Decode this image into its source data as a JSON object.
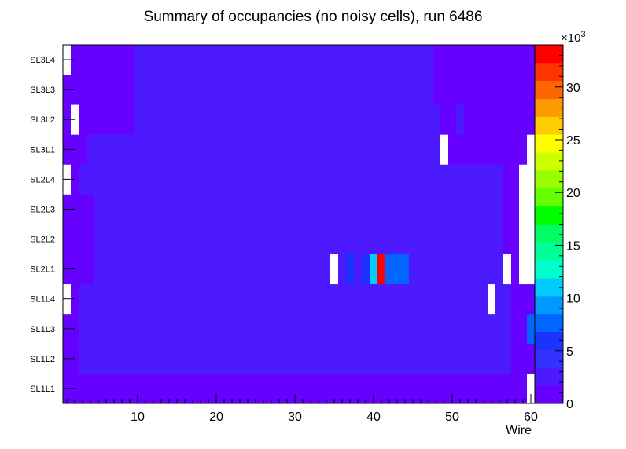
{
  "chart_data": {
    "type": "heatmap",
    "title": "Summary of occupancies (no noisy cells), run 6486",
    "xlabel": "Wire",
    "ylabel": "",
    "xlim": [
      0.5,
      60.5
    ],
    "x_ticks": [
      "10",
      "20",
      "30",
      "40",
      "50",
      "60"
    ],
    "x_tick_values": [
      10,
      20,
      30,
      40,
      50,
      60
    ],
    "rows": [
      "SL1L1",
      "SL1L2",
      "SL1L3",
      "SL1L4",
      "SL2L1",
      "SL2L2",
      "SL2L3",
      "SL2L4",
      "SL3L1",
      "SL3L2",
      "SL3L3",
      "SL3L4"
    ],
    "color_scale": {
      "min": 0,
      "max": 34000,
      "multiplier_label": "×10",
      "multiplier_exponent": "3",
      "tick_labels": [
        "0",
        "5",
        "10",
        "15",
        "20",
        "25",
        "30"
      ],
      "tick_values": [
        0,
        5000,
        10000,
        15000,
        20000,
        25000,
        30000
      ],
      "palette": [
        "#6600ff",
        "#4d1aff",
        "#3333ff",
        "#1a33ff",
        "#0066ff",
        "#0099ff",
        "#00ccff",
        "#00ffcc",
        "#00ff99",
        "#00ff66",
        "#00ff00",
        "#66ff00",
        "#99ff00",
        "#ccff00",
        "#ffff00",
        "#ffcc00",
        "#ff9900",
        "#ff6600",
        "#ff3300",
        "#ff0000"
      ]
    },
    "segments": [
      [
        [
          1,
          60,
          500
        ],
        [
          60,
          60,
          0
        ]
      ],
      [
        [
          1,
          2,
          800
        ],
        [
          3,
          33,
          2200
        ],
        [
          34,
          34,
          2900
        ],
        [
          35,
          57,
          2200
        ],
        [
          58,
          60,
          900
        ]
      ],
      [
        [
          1,
          2,
          800
        ],
        [
          3,
          33,
          2200
        ],
        [
          34,
          34,
          2600
        ],
        [
          35,
          57,
          2200
        ],
        [
          58,
          59,
          900
        ],
        [
          60,
          60,
          7500
        ]
      ],
      [
        [
          1,
          1,
          0
        ],
        [
          2,
          2,
          800
        ],
        [
          3,
          33,
          2200
        ],
        [
          34,
          34,
          2900
        ],
        [
          35,
          40,
          2200
        ],
        [
          41,
          41,
          2900
        ],
        [
          42,
          54,
          2200
        ],
        [
          55,
          55,
          0
        ],
        [
          56,
          57,
          2200
        ],
        [
          58,
          60,
          900
        ]
      ],
      [
        [
          1,
          1,
          1100
        ],
        [
          2,
          4,
          1600
        ],
        [
          5,
          34,
          3200
        ],
        [
          35,
          35,
          0
        ],
        [
          36,
          36,
          3200
        ],
        [
          37,
          37,
          5200
        ],
        [
          38,
          38,
          3200
        ],
        [
          39,
          39,
          5200
        ],
        [
          40,
          40,
          11500
        ],
        [
          41,
          41,
          34000
        ],
        [
          42,
          44,
          7500
        ],
        [
          45,
          53,
          3200
        ],
        [
          54,
          56,
          2000
        ],
        [
          57,
          57,
          0
        ],
        [
          58,
          58,
          1300
        ],
        [
          59,
          60,
          0
        ]
      ],
      [
        [
          1,
          1,
          1100
        ],
        [
          2,
          4,
          1600
        ],
        [
          5,
          34,
          3200
        ],
        [
          35,
          36,
          2700
        ],
        [
          37,
          54,
          3200
        ],
        [
          55,
          56,
          2000
        ],
        [
          57,
          58,
          1300
        ],
        [
          59,
          60,
          0
        ]
      ],
      [
        [
          1,
          1,
          1100
        ],
        [
          2,
          4,
          1600
        ],
        [
          5,
          34,
          3200
        ],
        [
          35,
          35,
          2700
        ],
        [
          36,
          54,
          3200
        ],
        [
          55,
          56,
          2000
        ],
        [
          57,
          58,
          1300
        ],
        [
          59,
          60,
          0
        ]
      ],
      [
        [
          1,
          1,
          0
        ],
        [
          2,
          2,
          1600
        ],
        [
          3,
          34,
          3200
        ],
        [
          35,
          54,
          3200
        ],
        [
          55,
          56,
          2000
        ],
        [
          57,
          58,
          1300
        ],
        [
          59,
          60,
          0
        ]
      ],
      [
        [
          1,
          1,
          1100
        ],
        [
          2,
          3,
          1600
        ],
        [
          4,
          48,
          2200
        ],
        [
          49,
          49,
          0
        ],
        [
          50,
          59,
          1400
        ],
        [
          60,
          60,
          0
        ]
      ],
      [
        [
          1,
          1,
          1300
        ],
        [
          2,
          2,
          0
        ],
        [
          3,
          3,
          1100
        ],
        [
          4,
          9,
          1400
        ],
        [
          10,
          48,
          2200
        ],
        [
          49,
          50,
          1300
        ],
        [
          51,
          51,
          2200
        ],
        [
          52,
          59,
          1300
        ],
        [
          60,
          60,
          1100
        ]
      ],
      [
        [
          1,
          2,
          900
        ],
        [
          3,
          9,
          1400
        ],
        [
          10,
          47,
          2200
        ],
        [
          48,
          49,
          1300
        ],
        [
          50,
          59,
          1400
        ],
        [
          60,
          60,
          1100
        ]
      ],
      [
        [
          1,
          1,
          0
        ],
        [
          2,
          3,
          1100
        ],
        [
          4,
          9,
          1400
        ],
        [
          10,
          47,
          2200
        ],
        [
          48,
          49,
          1300
        ],
        [
          50,
          59,
          1400
        ],
        [
          60,
          60,
          1100
        ]
      ]
    ]
  }
}
